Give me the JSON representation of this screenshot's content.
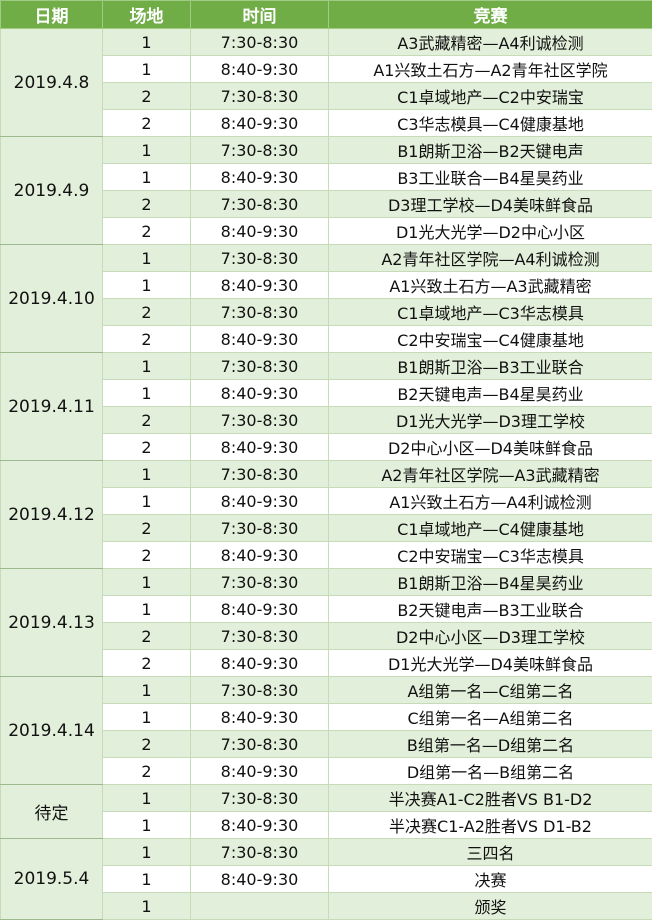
{
  "header": {
    "date": "日期",
    "venue": "场地",
    "time": "时间",
    "match": "竞赛"
  },
  "colors": {
    "header": "#70ad47",
    "band": "#e2efda"
  },
  "groups": [
    {
      "date": "2019.4.8",
      "rows": [
        {
          "venue": "1",
          "time": "7:30-8:30",
          "match": "A3武藏精密—A4利诚检测"
        },
        {
          "venue": "1",
          "time": "8:40-9:30",
          "match": "A1兴致土石方—A2青年社区学院"
        },
        {
          "venue": "2",
          "time": "7:30-8:30",
          "match": "C1卓域地产—C2中安瑞宝"
        },
        {
          "venue": "2",
          "time": "8:40-9:30",
          "match": "C3华志模具—C4健康基地"
        }
      ]
    },
    {
      "date": "2019.4.9",
      "rows": [
        {
          "venue": "1",
          "time": "7:30-8:30",
          "match": "B1朗斯卫浴—B2天键电声"
        },
        {
          "venue": "1",
          "time": "8:40-9:30",
          "match": "B3工业联合—B4星昊药业"
        },
        {
          "venue": "2",
          "time": "7:30-8:30",
          "match": "D3理工学校—D4美味鲜食品"
        },
        {
          "venue": "2",
          "time": "8:40-9:30",
          "match": "D1光大光学—D2中心小区"
        }
      ]
    },
    {
      "date": "2019.4.10",
      "rows": [
        {
          "venue": "1",
          "time": "7:30-8:30",
          "match": "A2青年社区学院—A4利诚检测"
        },
        {
          "venue": "1",
          "time": "8:40-9:30",
          "match": "A1兴致土石方—A3武藏精密"
        },
        {
          "venue": "2",
          "time": "7:30-8:30",
          "match": "C1卓域地产—C3华志模具"
        },
        {
          "venue": "2",
          "time": "8:40-9:30",
          "match": "C2中安瑞宝—C4健康基地"
        }
      ]
    },
    {
      "date": "2019.4.11",
      "rows": [
        {
          "venue": "1",
          "time": "7:30-8:30",
          "match": "B1朗斯卫浴—B3工业联合"
        },
        {
          "venue": "1",
          "time": "8:40-9:30",
          "match": "B2天键电声—B4星昊药业"
        },
        {
          "venue": "2",
          "time": "7:30-8:30",
          "match": "D1光大光学—D3理工学校"
        },
        {
          "venue": "2",
          "time": "8:40-9:30",
          "match": "D2中心小区—D4美味鲜食品"
        }
      ]
    },
    {
      "date": "2019.4.12",
      "rows": [
        {
          "venue": "1",
          "time": "7:30-8:30",
          "match": "A2青年社区学院—A3武藏精密"
        },
        {
          "venue": "1",
          "time": "8:40-9:30",
          "match": "A1兴致土石方—A4利诚检测"
        },
        {
          "venue": "2",
          "time": "7:30-8:30",
          "match": "C1卓域地产—C4健康基地"
        },
        {
          "venue": "2",
          "time": "8:40-9:30",
          "match": "C2中安瑞宝—C3华志模具"
        }
      ]
    },
    {
      "date": "2019.4.13",
      "rows": [
        {
          "venue": "1",
          "time": "7:30-8:30",
          "match": "B1朗斯卫浴—B4星昊药业"
        },
        {
          "venue": "1",
          "time": "8:40-9:30",
          "match": "B2天键电声—B3工业联合"
        },
        {
          "venue": "2",
          "time": "7:30-8:30",
          "match": "D2中心小区—D3理工学校"
        },
        {
          "venue": "2",
          "time": "8:40-9:30",
          "match": "D1光大光学—D4美味鲜食品"
        }
      ]
    },
    {
      "date": "2019.4.14",
      "rows": [
        {
          "venue": "1",
          "time": "7:30-8:30",
          "match": "A组第一名—C组第二名"
        },
        {
          "venue": "1",
          "time": "8:40-9:30",
          "match": "C组第一名—A组第二名"
        },
        {
          "venue": "2",
          "time": "7:30-8:30",
          "match": "B组第一名—D组第二名"
        },
        {
          "venue": "2",
          "time": "8:40-9:30",
          "match": "D组第一名—B组第二名"
        }
      ]
    },
    {
      "date": "待定",
      "rows": [
        {
          "venue": "1",
          "time": "7:30-8:30",
          "match": "半决赛A1-C2胜者VS B1-D2"
        },
        {
          "venue": "1",
          "time": "8:40-9:30",
          "match": "半决赛C1-A2胜者VS D1-B2"
        }
      ]
    },
    {
      "date": "2019.5.4",
      "rows": [
        {
          "venue": "1",
          "time": "7:30-8:30",
          "match": "三四名"
        },
        {
          "venue": "1",
          "time": "8:40-9:30",
          "match": "决赛"
        },
        {
          "venue": "1",
          "time": "",
          "match": "颁奖"
        }
      ]
    }
  ]
}
